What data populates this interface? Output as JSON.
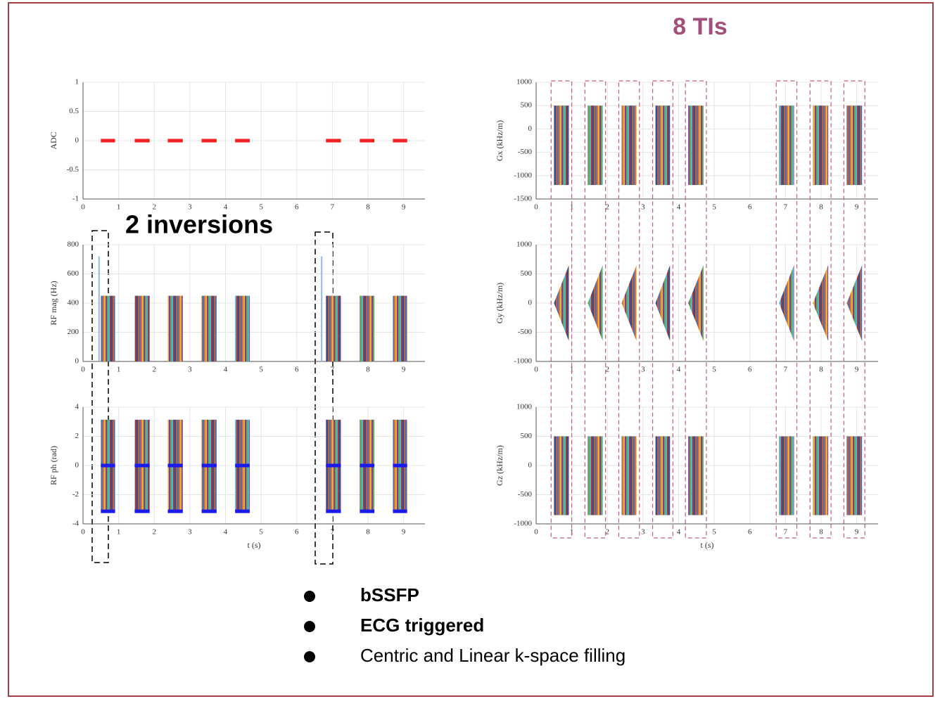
{
  "title": "8 TIs",
  "annotation": "2 inversions",
  "bullets": [
    "bSSFP",
    "ECG triggered",
    "Centric and Linear k-space filling"
  ],
  "chart_data": [
    {
      "type": "dash",
      "ylabel": "ADC",
      "xlim": [
        0,
        9.6
      ],
      "xticks": [
        0,
        1,
        2,
        3,
        4,
        5,
        6,
        7,
        8,
        9
      ],
      "ylim": [
        -1,
        1
      ],
      "yticks": [
        -1,
        -0.5,
        0,
        0.5,
        1
      ],
      "starts": [
        0.5,
        1.45,
        2.38,
        3.33,
        4.27,
        6.82,
        7.77,
        8.7
      ],
      "ends": [
        0.9,
        1.87,
        2.8,
        3.75,
        4.68,
        7.24,
        8.18,
        9.1
      ],
      "level": 0,
      "color": "#ee2222"
    },
    {
      "type": "block",
      "ylabel": "RF mag (Hz)",
      "xlim": [
        0,
        9.6
      ],
      "xticks": [
        0,
        1,
        2,
        3,
        4,
        5,
        6,
        7,
        8,
        9
      ],
      "ylim": [
        0,
        800
      ],
      "yticks": [
        0,
        200,
        400,
        600,
        800
      ],
      "starts": [
        0.5,
        1.45,
        2.38,
        3.33,
        4.27,
        6.82,
        7.77,
        8.7
      ],
      "ends": [
        0.9,
        1.87,
        2.8,
        3.75,
        4.68,
        7.24,
        8.18,
        9.1
      ],
      "low": 0,
      "high": 450,
      "spikes_x": [
        0.45,
        6.7
      ],
      "spikes_values": [
        720,
        720
      ]
    },
    {
      "type": "block",
      "ylabel": "RF ph (rad)",
      "xlabel": "t (s)",
      "xlim": [
        0,
        9.6
      ],
      "xticks": [
        0,
        1,
        2,
        3,
        4,
        5,
        6,
        7,
        8,
        9
      ],
      "ylim": [
        -4,
        4
      ],
      "yticks": [
        -4,
        -2,
        0,
        2,
        4
      ],
      "starts": [
        0.5,
        1.45,
        2.38,
        3.33,
        4.27,
        6.82,
        7.77,
        8.7
      ],
      "ends": [
        0.9,
        1.87,
        2.8,
        3.75,
        4.68,
        7.24,
        8.18,
        9.1
      ],
      "low": -3.14,
      "high": 3.14,
      "levels": [
        0,
        -3.14
      ],
      "color": "#1a1aee"
    },
    {
      "type": "block",
      "ylabel": "Gx (kHz/m)",
      "xlim": [
        0,
        9.6
      ],
      "xticks": [
        0,
        1,
        2,
        3,
        4,
        5,
        6,
        7,
        8,
        9
      ],
      "ylim": [
        -1500,
        1000
      ],
      "yticks": [
        -1500,
        -1000,
        -500,
        0,
        500,
        1000
      ],
      "starts": [
        0.5,
        1.45,
        2.4,
        3.35,
        4.27,
        6.82,
        7.77,
        8.72
      ],
      "ends": [
        0.92,
        1.87,
        2.82,
        3.76,
        4.7,
        7.24,
        8.2,
        9.15
      ],
      "low": -1200,
      "high": 500
    },
    {
      "type": "triangle",
      "ylabel": "Gy (kHz/m)",
      "xlim": [
        0,
        9.6
      ],
      "xticks": [
        0,
        1,
        2,
        3,
        4,
        5,
        6,
        7,
        8,
        9
      ],
      "ylim": [
        -1000,
        1000
      ],
      "yticks": [
        -1000,
        -500,
        0,
        500,
        1000
      ],
      "starts": [
        0.5,
        1.45,
        2.4,
        3.35,
        4.27,
        6.82,
        7.77,
        8.72
      ],
      "ends": [
        0.92,
        1.87,
        2.82,
        3.76,
        4.7,
        7.24,
        8.2,
        9.15
      ],
      "low": -650,
      "high": 650
    },
    {
      "type": "block",
      "ylabel": "Gz (kHz/m)",
      "xlabel": "t (s)",
      "xlim": [
        0,
        9.6
      ],
      "xticks": [
        0,
        1,
        2,
        3,
        4,
        5,
        6,
        7,
        8,
        9
      ],
      "ylim": [
        -1000,
        1000
      ],
      "yticks": [
        -1000,
        -500,
        0,
        500,
        1000
      ],
      "starts": [
        0.5,
        1.45,
        2.4,
        3.35,
        4.27,
        6.82,
        7.77,
        8.72
      ],
      "ends": [
        0.92,
        1.87,
        2.82,
        3.76,
        4.7,
        7.24,
        8.2,
        9.15
      ],
      "low": -850,
      "high": 500
    }
  ]
}
